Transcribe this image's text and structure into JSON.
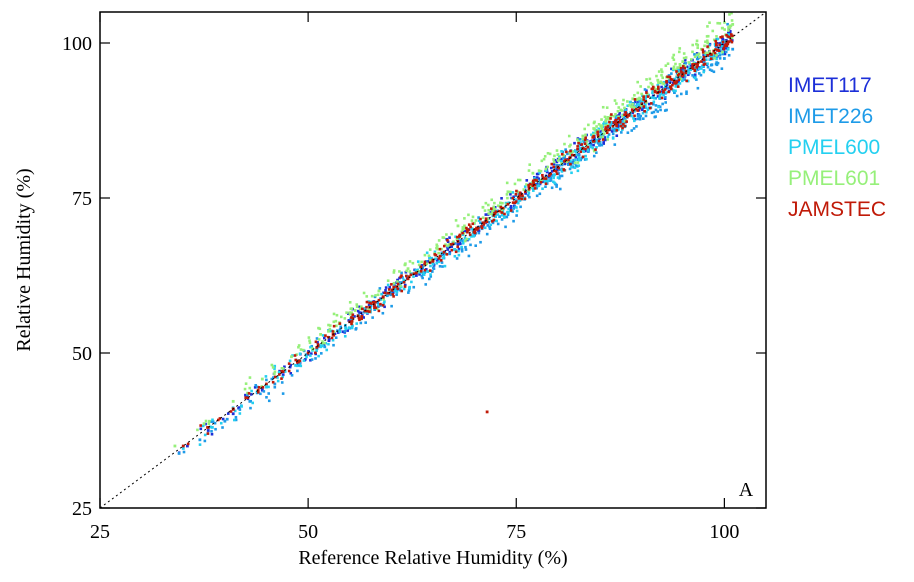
{
  "chart_data": {
    "type": "scatter",
    "title": "",
    "xlabel": "Reference Relative Humidity (%)",
    "ylabel": "Relative Humidity (%)",
    "xlim": [
      25,
      105
    ],
    "ylim": [
      25,
      105
    ],
    "xticks": [
      25,
      50,
      75,
      100
    ],
    "yticks": [
      25,
      50,
      75,
      100
    ],
    "grid": false,
    "legend_position": "right",
    "panel_label": "A",
    "reference_line": {
      "style": "dotted",
      "from": [
        25,
        25
      ],
      "to": [
        105,
        105
      ]
    },
    "series": [
      {
        "name": "IMET117",
        "color": "#1c2fd8",
        "offset": 0.2,
        "spread": 1.0,
        "points": [
          [
            35.5,
            35.0
          ],
          [
            38.0,
            37.5
          ],
          [
            41.0,
            40.2
          ],
          [
            44.5,
            44.0
          ],
          [
            47.0,
            46.5
          ],
          [
            50.0,
            49.8
          ],
          [
            52.5,
            52.0
          ],
          [
            55.0,
            55.2
          ],
          [
            58.0,
            57.6
          ],
          [
            60.5,
            60.0
          ],
          [
            63.0,
            62.5
          ],
          [
            65.5,
            65.0
          ],
          [
            68.0,
            67.5
          ],
          [
            70.5,
            70.3
          ],
          [
            72.5,
            72.0
          ],
          [
            75.0,
            74.5
          ],
          [
            77.5,
            77.2
          ],
          [
            80.0,
            79.5
          ],
          [
            82.5,
            82.0
          ],
          [
            85.0,
            84.6
          ],
          [
            87.5,
            87.0
          ],
          [
            90.0,
            89.6
          ],
          [
            92.5,
            92.0
          ],
          [
            95.0,
            94.5
          ],
          [
            97.5,
            97.0
          ],
          [
            100.0,
            99.5
          ],
          [
            100.8,
            101.0
          ]
        ]
      },
      {
        "name": "IMET226",
        "color": "#1e9be8",
        "offset": -0.8,
        "spread": 1.6,
        "points": [
          [
            34.5,
            33.8
          ],
          [
            37.0,
            36.0
          ],
          [
            40.0,
            39.0
          ],
          [
            43.0,
            42.2
          ],
          [
            46.0,
            45.0
          ],
          [
            49.0,
            48.0
          ],
          [
            52.0,
            51.0
          ],
          [
            55.0,
            54.0
          ],
          [
            58.0,
            57.0
          ],
          [
            61.0,
            60.2
          ],
          [
            64.0,
            63.0
          ],
          [
            67.0,
            66.0
          ],
          [
            70.0,
            69.0
          ],
          [
            73.0,
            72.0
          ],
          [
            76.0,
            74.8
          ],
          [
            79.0,
            77.8
          ],
          [
            82.0,
            80.6
          ],
          [
            85.0,
            83.5
          ],
          [
            88.0,
            86.5
          ],
          [
            91.0,
            89.5
          ],
          [
            94.0,
            92.0
          ],
          [
            96.5,
            94.5
          ],
          [
            98.5,
            96.5
          ],
          [
            100.0,
            97.5
          ],
          [
            101.0,
            99.0
          ]
        ]
      },
      {
        "name": "PMEL600",
        "color": "#24d0f0",
        "offset": -0.3,
        "spread": 1.2,
        "points": [
          [
            35.0,
            34.6
          ],
          [
            38.5,
            38.0
          ],
          [
            42.0,
            41.4
          ],
          [
            45.0,
            44.5
          ],
          [
            48.5,
            48.0
          ],
          [
            51.5,
            51.0
          ],
          [
            54.5,
            54.0
          ],
          [
            57.5,
            57.2
          ],
          [
            60.5,
            60.0
          ],
          [
            63.5,
            63.0
          ],
          [
            66.5,
            66.0
          ],
          [
            69.5,
            69.0
          ],
          [
            72.5,
            72.0
          ],
          [
            75.5,
            75.0
          ],
          [
            78.5,
            78.0
          ],
          [
            81.5,
            81.0
          ],
          [
            84.5,
            84.0
          ],
          [
            87.5,
            87.0
          ],
          [
            90.5,
            90.0
          ],
          [
            93.5,
            93.0
          ],
          [
            96.5,
            96.0
          ],
          [
            99.5,
            99.0
          ]
        ]
      },
      {
        "name": "PMEL601",
        "color": "#96f07a",
        "offset": 1.4,
        "spread": 1.5,
        "points": [
          [
            34.0,
            35.0
          ],
          [
            37.5,
            38.6
          ],
          [
            41.0,
            42.2
          ],
          [
            44.5,
            45.8
          ],
          [
            48.0,
            49.4
          ],
          [
            51.5,
            53.0
          ],
          [
            55.0,
            56.5
          ],
          [
            58.5,
            60.0
          ],
          [
            62.0,
            63.6
          ],
          [
            65.5,
            67.2
          ],
          [
            68.0,
            70.5
          ],
          [
            71.0,
            73.5
          ],
          [
            74.0,
            76.0
          ],
          [
            77.0,
            79.0
          ],
          [
            80.0,
            82.0
          ],
          [
            83.0,
            85.0
          ],
          [
            86.0,
            88.0
          ],
          [
            89.0,
            91.0
          ],
          [
            92.0,
            94.0
          ],
          [
            95.0,
            97.0
          ],
          [
            98.0,
            100.0
          ],
          [
            100.5,
            102.5
          ],
          [
            101.0,
            103.0
          ]
        ]
      },
      {
        "name": "JAMSTEC",
        "color": "#c01a08",
        "offset": 0.0,
        "spread": 0.9,
        "points": [
          [
            35.0,
            35.0
          ],
          [
            38.0,
            38.0
          ],
          [
            41.0,
            41.0
          ],
          [
            44.0,
            44.0
          ],
          [
            47.0,
            47.0
          ],
          [
            50.0,
            50.0
          ],
          [
            53.0,
            53.0
          ],
          [
            56.0,
            56.0
          ],
          [
            59.0,
            59.0
          ],
          [
            62.0,
            62.0
          ],
          [
            65.0,
            65.0
          ],
          [
            68.0,
            68.0
          ],
          [
            71.0,
            71.0
          ],
          [
            74.0,
            74.0
          ],
          [
            77.0,
            77.0
          ],
          [
            80.0,
            80.0
          ],
          [
            83.0,
            83.0
          ],
          [
            86.0,
            86.0
          ],
          [
            89.0,
            89.0
          ],
          [
            92.0,
            92.0
          ],
          [
            95.0,
            95.0
          ],
          [
            98.0,
            98.0
          ],
          [
            100.5,
            100.2
          ],
          [
            71.5,
            40.5
          ]
        ]
      }
    ]
  }
}
